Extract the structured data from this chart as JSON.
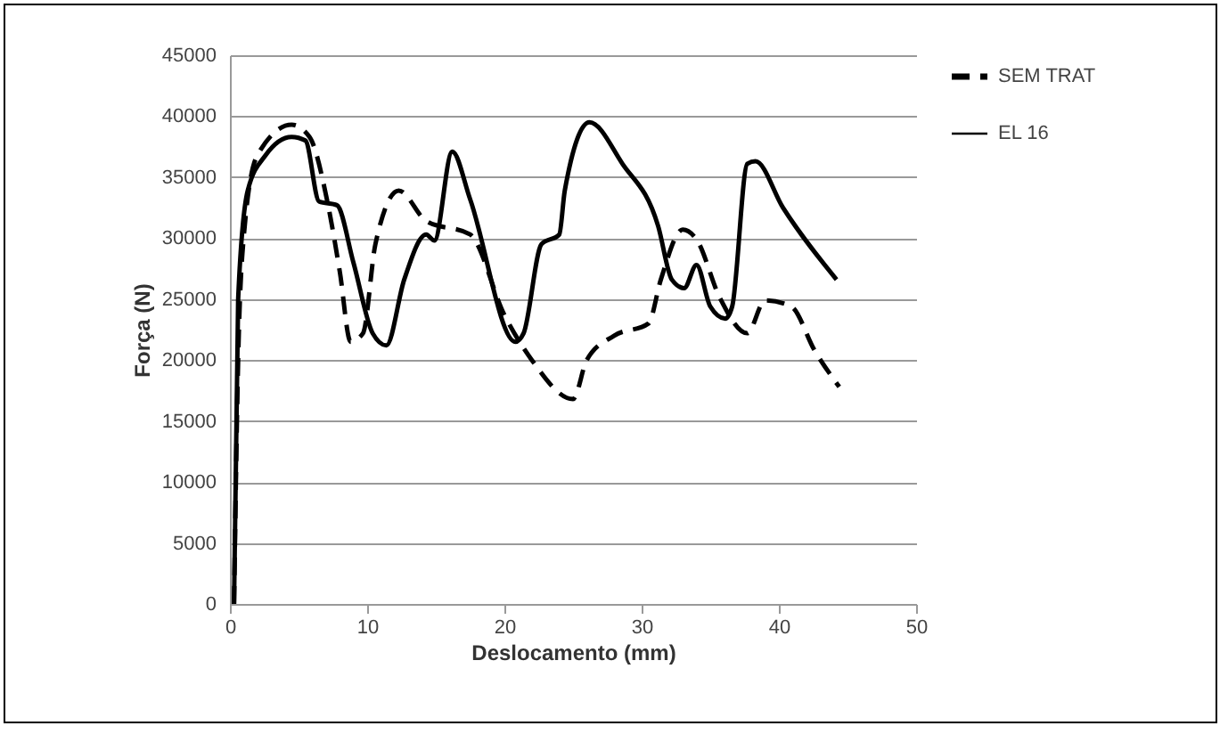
{
  "chart_data": {
    "type": "line",
    "xlabel": "Deslocamento (mm)",
    "ylabel": "Força (N)",
    "xlim": [
      0,
      50
    ],
    "xticks": [
      0,
      10,
      20,
      30,
      40,
      50
    ],
    "ylim": [
      0,
      45000
    ],
    "yticks": [
      0,
      5000,
      10000,
      15000,
      20000,
      25000,
      30000,
      35000,
      40000,
      45000
    ],
    "grid": "y",
    "legend": "right",
    "marker": "none",
    "series": [
      {
        "name": "SEM TRAT",
        "color": "#000000",
        "line_style": "dashed",
        "x": [
          0.3,
          0.6,
          1,
          2,
          4.5,
          5.8,
          7.1,
          8,
          8.8,
          9.7,
          10.6,
          12.3,
          14.3,
          17.5,
          20,
          22,
          25,
          26,
          28,
          30.5,
          31.4,
          33,
          34,
          35.7,
          37.7,
          39,
          40.9,
          42.6,
          44.4
        ],
        "values": [
          0,
          20000,
          30000,
          36800,
          39300,
          38300,
          33000,
          27300,
          21500,
          22200,
          29500,
          33900,
          31400,
          30300,
          23700,
          20000,
          16800,
          20000,
          22000,
          23000,
          26600,
          30700,
          29900,
          25100,
          22200,
          24900,
          24400,
          20800,
          17800
        ]
      },
      {
        "name": "EL 16",
        "color": "#000000",
        "line_style": "solid",
        "x": [
          0.3,
          0.6,
          1.3,
          2.6,
          4.5,
          5.5,
          6.5,
          7.8,
          9,
          10.4,
          11.4,
          12.7,
          14.3,
          14.9,
          16.2,
          17.5,
          20.8,
          21.4,
          22.7,
          24,
          24.4,
          26.2,
          28.6,
          31.2,
          32.2,
          33.1,
          34,
          35,
          36.1,
          36.6,
          37.7,
          38.3,
          40.3,
          44.2
        ],
        "values": [
          0,
          25000,
          33900,
          36800,
          38300,
          38000,
          33000,
          32700,
          28000,
          22200,
          21200,
          26600,
          30300,
          29800,
          37100,
          33200,
          21500,
          22200,
          29500,
          30300,
          33900,
          39500,
          36100,
          31000,
          26600,
          25900,
          27800,
          24400,
          23400,
          24400,
          36100,
          36300,
          32500,
          26600
        ]
      }
    ]
  }
}
